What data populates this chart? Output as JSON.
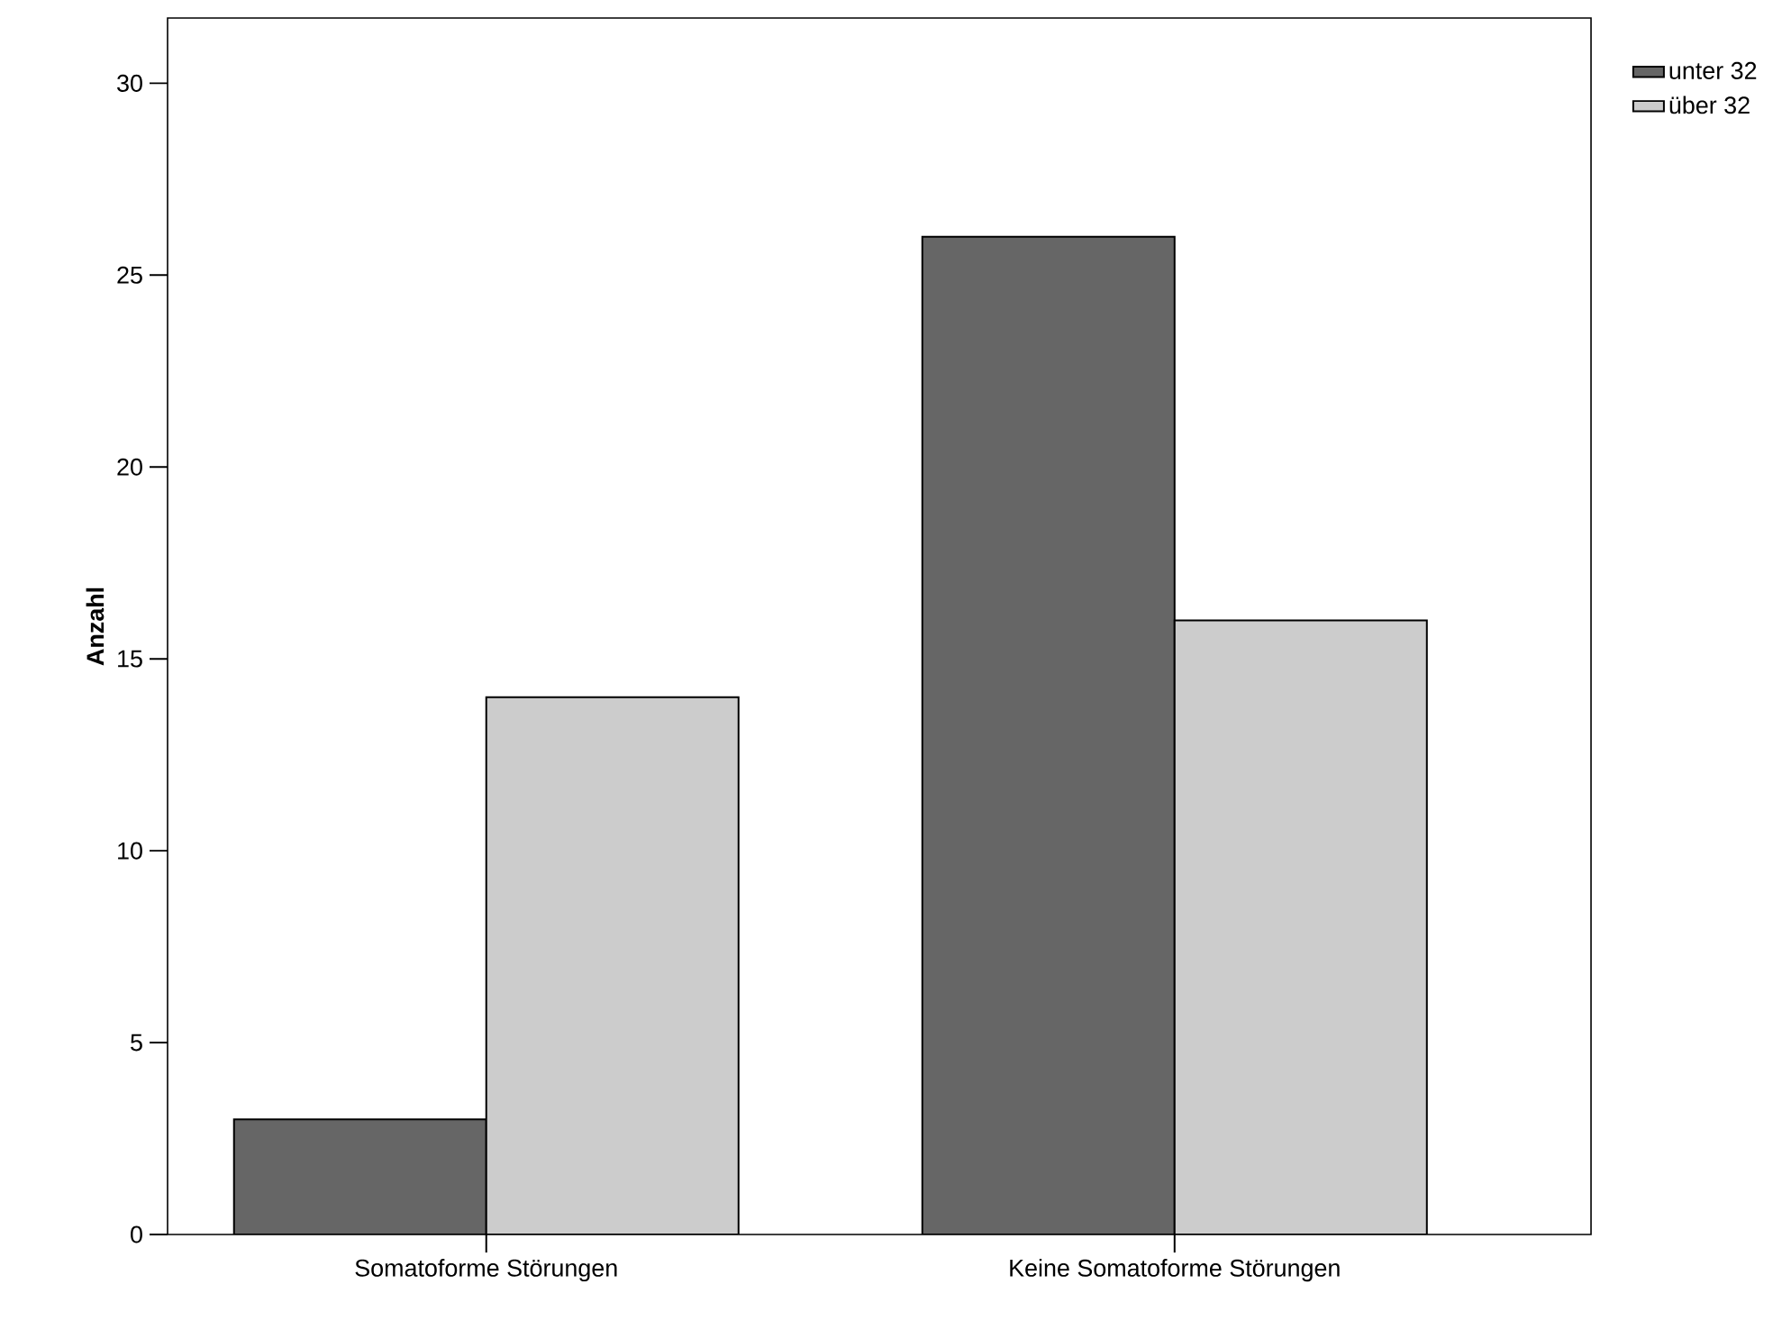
{
  "chart_data": {
    "type": "bar",
    "ylabel": "Anzahl",
    "categories": [
      "Somatoforme Störungen",
      "Keine Somatoforme Störungen"
    ],
    "series": [
      {
        "name": "unter 32",
        "color": "#666666",
        "values": [
          3,
          26
        ]
      },
      {
        "name": "über 32",
        "color": "#cccccc",
        "values": [
          14,
          16
        ]
      }
    ],
    "ylim": [
      0,
      31.7
    ],
    "yticks": [
      0,
      5,
      10,
      15,
      20,
      25,
      30
    ],
    "grid": false,
    "legend": "top right"
  }
}
